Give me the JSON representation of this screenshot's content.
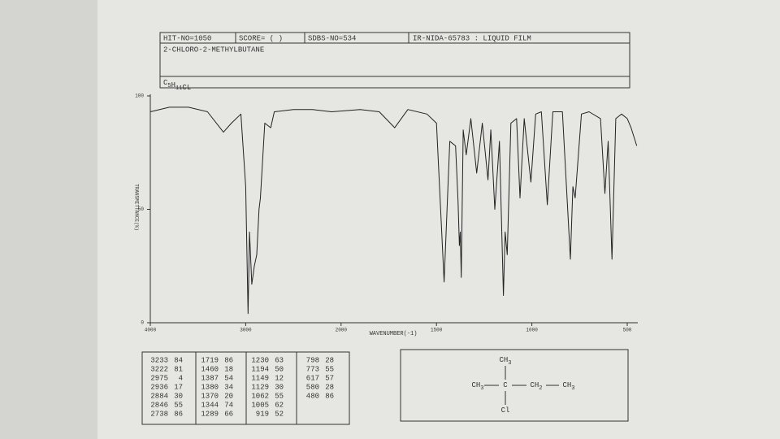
{
  "header": {
    "hit_no": "HIT-NO=1050",
    "score": "SCORE=  (    )",
    "sdbs_no": "SDBS-NO=534",
    "ir_code": "IR-NIDA-65783 : LIQUID FILM",
    "name": "2-CHLORO-2-METHYLBUTANE",
    "formula": [
      {
        "text": "C",
        "sub": "5"
      },
      {
        "text": "H",
        "sub": "11"
      },
      {
        "text": "CL"
      }
    ]
  },
  "chart_data": {
    "type": "line",
    "xlabel": "WAVENUMBER(-1)",
    "ylabel": "TRANSMITTANCE(%)",
    "x": [
      4000,
      3800,
      3600,
      3400,
      3233,
      3150,
      3050,
      3000,
      2975,
      2960,
      2936,
      2910,
      2884,
      2860,
      2846,
      2800,
      2738,
      2700,
      2500,
      2300,
      2100,
      1900,
      1800,
      1719,
      1650,
      1550,
      1500,
      1460,
      1430,
      1400,
      1387,
      1380,
      1375,
      1370,
      1360,
      1344,
      1320,
      1289,
      1260,
      1230,
      1215,
      1194,
      1170,
      1149,
      1140,
      1129,
      1110,
      1080,
      1062,
      1040,
      1005,
      980,
      950,
      919,
      890,
      840,
      798,
      785,
      773,
      740,
      700,
      640,
      617,
      600,
      580,
      560,
      530,
      500,
      480,
      450
    ],
    "values": [
      93,
      95,
      95,
      93,
      84,
      88,
      92,
      60,
      4,
      40,
      17,
      25,
      30,
      50,
      55,
      88,
      86,
      93,
      94,
      94,
      93,
      94,
      93,
      86,
      94,
      92,
      88,
      18,
      80,
      78,
      54,
      34,
      40,
      20,
      85,
      74,
      90,
      66,
      88,
      63,
      85,
      50,
      80,
      12,
      40,
      30,
      88,
      90,
      55,
      90,
      62,
      92,
      93,
      52,
      93,
      93,
      28,
      60,
      55,
      92,
      93,
      90,
      57,
      80,
      28,
      90,
      92,
      90,
      86,
      78
    ],
    "color": "#222222",
    "xlim": [
      4000,
      450
    ],
    "xticks": [
      4000,
      3000,
      2000,
      1500,
      1000,
      500
    ],
    "ylim": [
      0,
      100
    ],
    "yticks": [
      0,
      50,
      100
    ]
  },
  "peak_table": {
    "columns": [
      [
        [
          3233,
          84
        ],
        [
          3222,
          81
        ],
        [
          2975,
          4
        ],
        [
          2936,
          17
        ],
        [
          2884,
          30
        ],
        [
          2846,
          55
        ],
        [
          2738,
          86
        ]
      ],
      [
        [
          1719,
          86
        ],
        [
          1460,
          18
        ],
        [
          1387,
          54
        ],
        [
          1380,
          34
        ],
        [
          1370,
          20
        ],
        [
          1344,
          74
        ],
        [
          1289,
          66
        ]
      ],
      [
        [
          1230,
          63
        ],
        [
          1194,
          50
        ],
        [
          1149,
          12
        ],
        [
          1129,
          30
        ],
        [
          1062,
          55
        ],
        [
          1005,
          62
        ],
        [
          919,
          52
        ]
      ],
      [
        [
          798,
          28
        ],
        [
          773,
          55
        ],
        [
          617,
          57
        ],
        [
          580,
          28
        ],
        [
          480,
          86
        ]
      ]
    ]
  },
  "structure": {
    "nodes": [
      {
        "text": "CH",
        "sub": "3"
      },
      {
        "text": "CH",
        "sub": "3"
      },
      {
        "text": "C"
      },
      {
        "text": "CH",
        "sub": "2"
      },
      {
        "text": "CH",
        "sub": "3"
      },
      {
        "text": "Cl"
      }
    ]
  }
}
